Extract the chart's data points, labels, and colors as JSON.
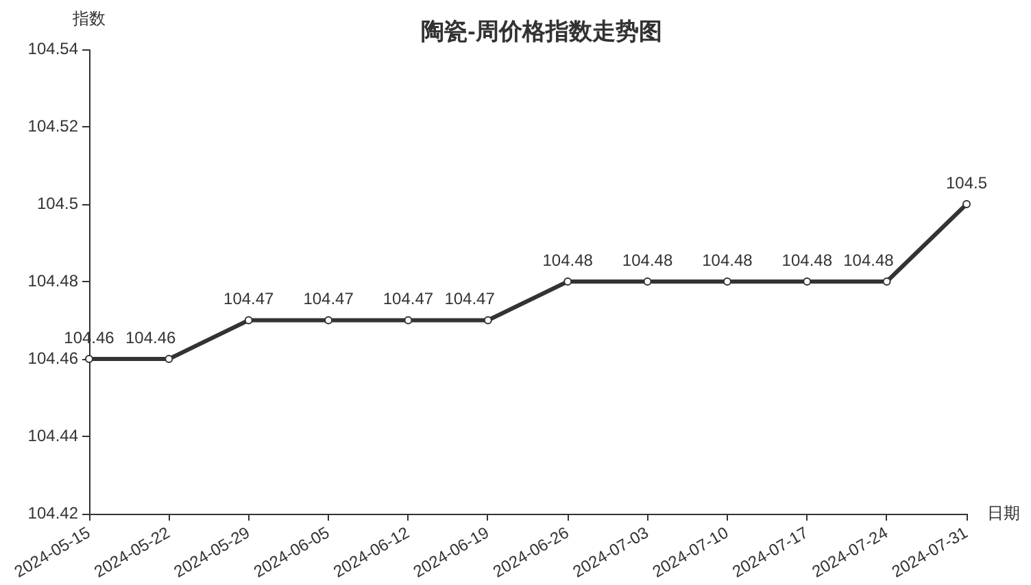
{
  "chart_data": {
    "type": "line",
    "title": "陶瓷-周价格指数走势图",
    "xlabel": "日期",
    "ylabel": "指数",
    "categories": [
      "2024-05-15",
      "2024-05-22",
      "2024-05-29",
      "2024-06-05",
      "2024-06-12",
      "2024-06-19",
      "2024-06-26",
      "2024-07-03",
      "2024-07-10",
      "2024-07-17",
      "2024-07-24",
      "2024-07-31"
    ],
    "series": [
      {
        "color": "#333333",
        "values": [
          104.46,
          104.46,
          104.47,
          104.47,
          104.47,
          104.47,
          104.48,
          104.48,
          104.48,
          104.48,
          104.48,
          104.5
        ]
      }
    ],
    "ylim": [
      104.42,
      104.54
    ],
    "yticks": [
      104.42,
      104.44,
      104.46,
      104.48,
      104.5,
      104.52,
      104.54
    ],
    "data_labels": true,
    "grid": false,
    "legend": false,
    "marker": "circle",
    "line_style": "solid"
  }
}
